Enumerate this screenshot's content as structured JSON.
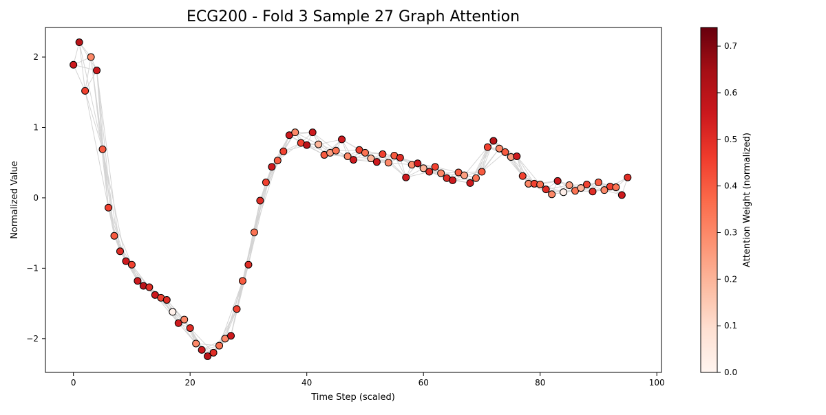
{
  "chart_data": {
    "type": "scatter",
    "title": "ECG200 - Fold 3 Sample 27 Graph Attention",
    "xlabel": "Time Step (scaled)",
    "ylabel": "Normalized Value",
    "xlim": [
      -4.8,
      100.8
    ],
    "ylim": [
      -2.48,
      2.42
    ],
    "xticks": [
      0,
      20,
      40,
      60,
      80,
      100
    ],
    "yticks": [
      -2,
      -1,
      0,
      1,
      2
    ],
    "ytick_labels": [
      "−2",
      "−1",
      "0",
      "1",
      "2"
    ],
    "grid": false,
    "colorbar": {
      "label": "Attention Weight (normalized)",
      "range": [
        0,
        0.74
      ],
      "ticks": [
        0.0,
        0.1,
        0.2,
        0.3,
        0.4,
        0.5,
        0.6,
        0.7
      ],
      "tick_labels": [
        "0.0",
        "0.1",
        "0.2",
        "0.3",
        "0.4",
        "0.5",
        "0.6",
        "0.7"
      ],
      "colormap": [
        "#fff5f0",
        "#fee0d2",
        "#fcbba1",
        "#fc9272",
        "#fb6a4a",
        "#ef3b2c",
        "#cb181d",
        "#a50f15",
        "#67000d"
      ]
    },
    "points": [
      {
        "x": 0,
        "y": 1.89,
        "w": 0.55
      },
      {
        "x": 1,
        "y": 2.21,
        "w": 0.6
      },
      {
        "x": 2,
        "y": 1.52,
        "w": 0.45
      },
      {
        "x": 3,
        "y": 2.0,
        "w": 0.3
      },
      {
        "x": 4,
        "y": 1.81,
        "w": 0.55
      },
      {
        "x": 5,
        "y": 0.69,
        "w": 0.4
      },
      {
        "x": 6,
        "y": -0.14,
        "w": 0.45
      },
      {
        "x": 7,
        "y": -0.54,
        "w": 0.4
      },
      {
        "x": 8,
        "y": -0.76,
        "w": 0.5
      },
      {
        "x": 9,
        "y": -0.9,
        "w": 0.55
      },
      {
        "x": 10,
        "y": -0.95,
        "w": 0.45
      },
      {
        "x": 11,
        "y": -1.18,
        "w": 0.55
      },
      {
        "x": 12,
        "y": -1.25,
        "w": 0.6
      },
      {
        "x": 13,
        "y": -1.27,
        "w": 0.5
      },
      {
        "x": 14,
        "y": -1.38,
        "w": 0.55
      },
      {
        "x": 15,
        "y": -1.42,
        "w": 0.45
      },
      {
        "x": 16,
        "y": -1.45,
        "w": 0.5
      },
      {
        "x": 17,
        "y": -1.62,
        "w": 0.02
      },
      {
        "x": 18,
        "y": -1.78,
        "w": 0.55
      },
      {
        "x": 19,
        "y": -1.73,
        "w": 0.3
      },
      {
        "x": 20,
        "y": -1.85,
        "w": 0.5
      },
      {
        "x": 21,
        "y": -2.07,
        "w": 0.3
      },
      {
        "x": 22,
        "y": -2.16,
        "w": 0.55
      },
      {
        "x": 23,
        "y": -2.25,
        "w": 0.6
      },
      {
        "x": 24,
        "y": -2.2,
        "w": 0.5
      },
      {
        "x": 25,
        "y": -2.1,
        "w": 0.35
      },
      {
        "x": 26,
        "y": -2.0,
        "w": 0.3
      },
      {
        "x": 27,
        "y": -1.96,
        "w": 0.55
      },
      {
        "x": 28,
        "y": -1.58,
        "w": 0.45
      },
      {
        "x": 29,
        "y": -1.18,
        "w": 0.4
      },
      {
        "x": 30,
        "y": -0.95,
        "w": 0.5
      },
      {
        "x": 31,
        "y": -0.49,
        "w": 0.35
      },
      {
        "x": 32,
        "y": -0.04,
        "w": 0.5
      },
      {
        "x": 33,
        "y": 0.22,
        "w": 0.45
      },
      {
        "x": 34,
        "y": 0.44,
        "w": 0.55
      },
      {
        "x": 35,
        "y": 0.53,
        "w": 0.4
      },
      {
        "x": 36,
        "y": 0.66,
        "w": 0.45
      },
      {
        "x": 37,
        "y": 0.89,
        "w": 0.55
      },
      {
        "x": 38,
        "y": 0.93,
        "w": 0.3
      },
      {
        "x": 39,
        "y": 0.78,
        "w": 0.45
      },
      {
        "x": 40,
        "y": 0.75,
        "w": 0.6
      },
      {
        "x": 41,
        "y": 0.93,
        "w": 0.55
      },
      {
        "x": 42,
        "y": 0.76,
        "w": 0.2
      },
      {
        "x": 43,
        "y": 0.61,
        "w": 0.4
      },
      {
        "x": 44,
        "y": 0.64,
        "w": 0.25
      },
      {
        "x": 45,
        "y": 0.67,
        "w": 0.35
      },
      {
        "x": 46,
        "y": 0.83,
        "w": 0.55
      },
      {
        "x": 47,
        "y": 0.59,
        "w": 0.3
      },
      {
        "x": 48,
        "y": 0.54,
        "w": 0.55
      },
      {
        "x": 49,
        "y": 0.68,
        "w": 0.45
      },
      {
        "x": 50,
        "y": 0.64,
        "w": 0.35
      },
      {
        "x": 51,
        "y": 0.56,
        "w": 0.2
      },
      {
        "x": 52,
        "y": 0.51,
        "w": 0.55
      },
      {
        "x": 53,
        "y": 0.62,
        "w": 0.45
      },
      {
        "x": 54,
        "y": 0.5,
        "w": 0.3
      },
      {
        "x": 55,
        "y": 0.6,
        "w": 0.4
      },
      {
        "x": 56,
        "y": 0.57,
        "w": 0.5
      },
      {
        "x": 57,
        "y": 0.29,
        "w": 0.55
      },
      {
        "x": 58,
        "y": 0.47,
        "w": 0.3
      },
      {
        "x": 59,
        "y": 0.49,
        "w": 0.55
      },
      {
        "x": 60,
        "y": 0.42,
        "w": 0.2
      },
      {
        "x": 61,
        "y": 0.37,
        "w": 0.5
      },
      {
        "x": 62,
        "y": 0.44,
        "w": 0.45
      },
      {
        "x": 63,
        "y": 0.35,
        "w": 0.3
      },
      {
        "x": 64,
        "y": 0.28,
        "w": 0.5
      },
      {
        "x": 65,
        "y": 0.25,
        "w": 0.55
      },
      {
        "x": 66,
        "y": 0.36,
        "w": 0.4
      },
      {
        "x": 67,
        "y": 0.32,
        "w": 0.25
      },
      {
        "x": 68,
        "y": 0.21,
        "w": 0.55
      },
      {
        "x": 69,
        "y": 0.28,
        "w": 0.35
      },
      {
        "x": 70,
        "y": 0.37,
        "w": 0.4
      },
      {
        "x": 71,
        "y": 0.72,
        "w": 0.45
      },
      {
        "x": 72,
        "y": 0.81,
        "w": 0.6
      },
      {
        "x": 73,
        "y": 0.7,
        "w": 0.3
      },
      {
        "x": 74,
        "y": 0.65,
        "w": 0.4
      },
      {
        "x": 75,
        "y": 0.58,
        "w": 0.25
      },
      {
        "x": 76,
        "y": 0.59,
        "w": 0.55
      },
      {
        "x": 77,
        "y": 0.31,
        "w": 0.45
      },
      {
        "x": 78,
        "y": 0.2,
        "w": 0.3
      },
      {
        "x": 79,
        "y": 0.2,
        "w": 0.45
      },
      {
        "x": 80,
        "y": 0.19,
        "w": 0.35
      },
      {
        "x": 81,
        "y": 0.12,
        "w": 0.5
      },
      {
        "x": 82,
        "y": 0.05,
        "w": 0.3
      },
      {
        "x": 83,
        "y": 0.24,
        "w": 0.55
      },
      {
        "x": 84,
        "y": 0.08,
        "w": 0.02
      },
      {
        "x": 85,
        "y": 0.18,
        "w": 0.25
      },
      {
        "x": 86,
        "y": 0.1,
        "w": 0.35
      },
      {
        "x": 87,
        "y": 0.14,
        "w": 0.2
      },
      {
        "x": 88,
        "y": 0.19,
        "w": 0.45
      },
      {
        "x": 89,
        "y": 0.09,
        "w": 0.5
      },
      {
        "x": 90,
        "y": 0.22,
        "w": 0.4
      },
      {
        "x": 91,
        "y": 0.11,
        "w": 0.3
      },
      {
        "x": 92,
        "y": 0.16,
        "w": 0.45
      },
      {
        "x": 93,
        "y": 0.15,
        "w": 0.35
      },
      {
        "x": 94,
        "y": 0.04,
        "w": 0.55
      },
      {
        "x": 95,
        "y": 0.29,
        "w": 0.5
      }
    ],
    "edge_color": "#d4d4d4",
    "marker_edge_color": "#000000"
  }
}
